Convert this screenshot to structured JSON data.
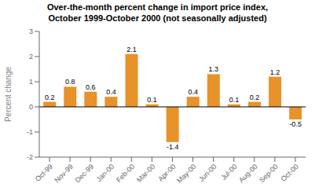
{
  "chart_data": {
    "type": "bar",
    "title": "Over-the-month percent change in import price index,\nOctober 1999-October 2000 (not seasonally adjusted)",
    "categories": [
      "Oct-99",
      "Nov-99",
      "Dec-99",
      "Jan-00",
      "Feb-00",
      "Mar-00",
      "Apr-00",
      "May-00",
      "Jun-00",
      "Jul-00",
      "Aug-00",
      "Sep-00",
      "Oct-00"
    ],
    "values": [
      0.2,
      0.8,
      0.6,
      0.4,
      2.1,
      0.1,
      -1.4,
      0.4,
      1.3,
      0.1,
      0.2,
      1.2,
      -0.5
    ],
    "color": "#E8922A",
    "y_label": "Percent change",
    "ylim": [
      -2,
      3
    ],
    "yticks": [
      -2,
      -1,
      0,
      1,
      2,
      3
    ],
    "grid": false,
    "data_labels": true
  }
}
